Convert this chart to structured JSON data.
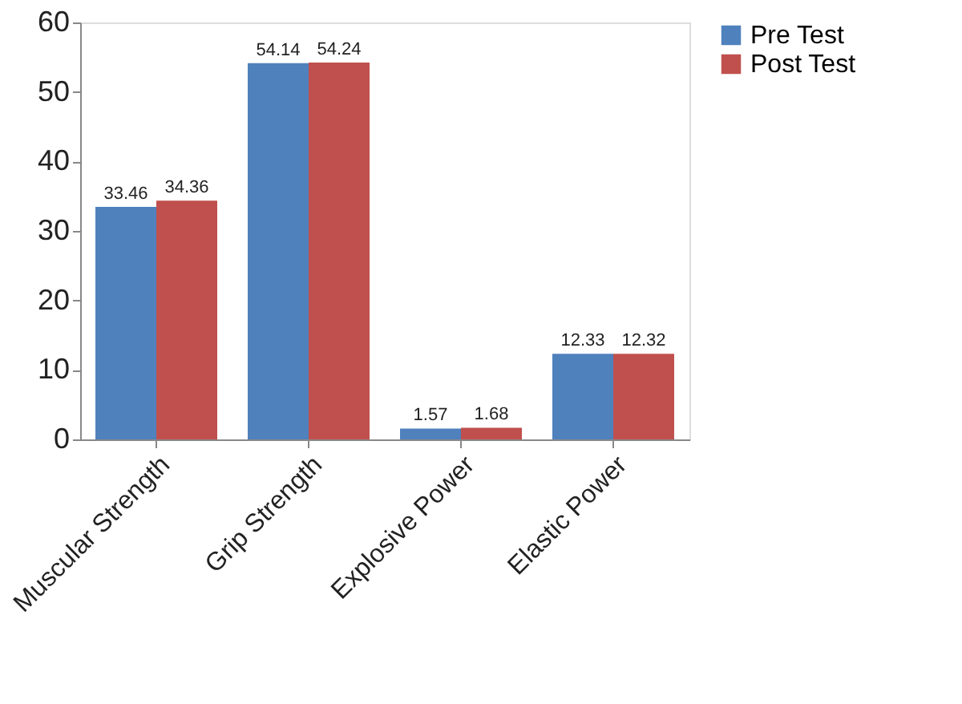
{
  "chart_data": {
    "type": "bar",
    "categories": [
      "Muscular Strength",
      "Grip Strength",
      "Explosive Power",
      "Elastic Power"
    ],
    "series": [
      {
        "name": "Pre Test",
        "color": "#4f81bd",
        "values": [
          33.46,
          54.14,
          1.57,
          12.33
        ]
      },
      {
        "name": "Post Test",
        "color": "#c0504d",
        "values": [
          34.36,
          54.24,
          1.68,
          12.32
        ]
      }
    ],
    "ylim": [
      0,
      60
    ],
    "yticks": [
      0,
      10,
      20,
      30,
      40,
      50,
      60
    ],
    "grid": false,
    "legend": "right",
    "data_labels": true
  }
}
